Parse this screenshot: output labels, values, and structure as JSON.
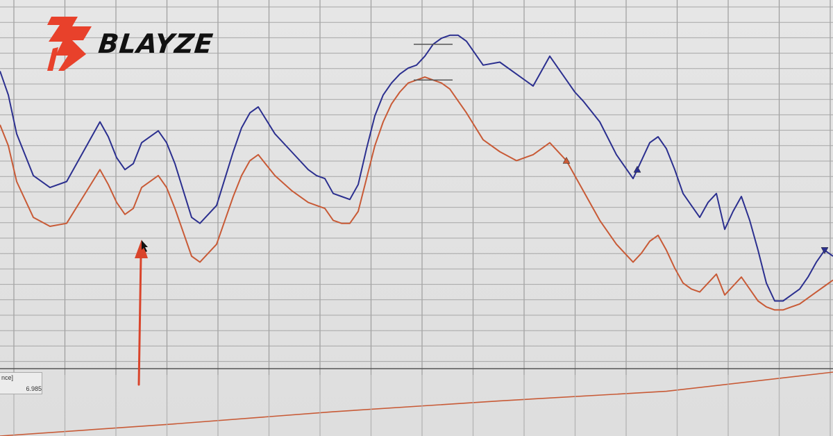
{
  "brand": {
    "name": "BLAYZE",
    "colors": {
      "mark": "#e8412b",
      "text": "#111111"
    }
  },
  "chart_data": {
    "type": "line",
    "title": "",
    "xlabel": "",
    "ylabel": "",
    "grid": true,
    "xlim": [
      0,
      100
    ],
    "ylim": [
      0,
      100
    ],
    "series": [
      {
        "color": "#2b2f8f",
        "x": [
          0,
          1,
          2,
          4,
          6,
          8,
          10,
          12,
          13,
          14,
          15,
          16,
          17,
          19,
          20,
          21,
          22,
          23,
          24,
          25,
          26,
          27,
          28,
          29,
          30,
          31,
          33,
          35,
          37,
          38,
          39,
          40,
          41,
          42,
          43,
          44,
          45,
          46,
          47,
          48,
          49,
          50,
          51,
          52,
          53,
          54,
          55,
          56,
          58,
          60,
          62,
          64,
          66,
          68,
          69,
          70,
          72,
          74,
          76,
          77,
          78,
          79,
          80,
          81,
          82,
          83,
          84,
          85,
          86,
          87,
          88,
          89,
          90,
          91,
          92,
          93,
          94,
          95,
          96,
          97,
          98,
          99,
          100
        ],
        "values": [
          82,
          74,
          61,
          47,
          43,
          45,
          55,
          65,
          60,
          53,
          49,
          51,
          58,
          62,
          58,
          51,
          42,
          33,
          31,
          34,
          37,
          46,
          55,
          63,
          68,
          70,
          61,
          55,
          49,
          47,
          46,
          41,
          40,
          39,
          44,
          56,
          67,
          74,
          78,
          81,
          83,
          84,
          87,
          91,
          93,
          94,
          94,
          92,
          84,
          85,
          81,
          77,
          87,
          79,
          75,
          72,
          65,
          54,
          46,
          52,
          58,
          60,
          56,
          49,
          41,
          37,
          33,
          38,
          41,
          29,
          35,
          40,
          32,
          22,
          11,
          5,
          5,
          7,
          9,
          13,
          18,
          22,
          20
        ]
      },
      {
        "color": "#c85a36",
        "x": [
          0,
          1,
          2,
          4,
          6,
          8,
          10,
          12,
          13,
          14,
          15,
          16,
          17,
          19,
          20,
          21,
          22,
          23,
          24,
          25,
          26,
          27,
          28,
          29,
          30,
          31,
          33,
          35,
          37,
          38,
          39,
          40,
          41,
          42,
          43,
          44,
          45,
          46,
          47,
          48,
          49,
          50,
          51,
          52,
          53,
          54,
          55,
          56,
          58,
          60,
          62,
          64,
          66,
          68,
          69,
          70,
          72,
          74,
          76,
          77,
          78,
          79,
          80,
          81,
          82,
          83,
          84,
          85,
          86,
          87,
          88,
          89,
          90,
          91,
          92,
          93,
          94,
          95,
          96,
          97,
          98,
          99,
          100
        ],
        "values": [
          64,
          57,
          45,
          33,
          30,
          31,
          40,
          49,
          44,
          38,
          34,
          36,
          43,
          47,
          43,
          36,
          28,
          20,
          18,
          21,
          24,
          32,
          40,
          47,
          52,
          54,
          47,
          42,
          38,
          37,
          36,
          32,
          31,
          31,
          35,
          46,
          57,
          65,
          71,
          75,
          78,
          79,
          80,
          79,
          78,
          76,
          72,
          68,
          59,
          55,
          52,
          54,
          58,
          52,
          47,
          42,
          32,
          24,
          18,
          21,
          25,
          27,
          22,
          16,
          11,
          9,
          8,
          11,
          14,
          7,
          10,
          13,
          9,
          5,
          3,
          2,
          2,
          3,
          4,
          6,
          8,
          10,
          12
        ]
      }
    ],
    "markers": [
      {
        "series": 0,
        "x": 76.5,
        "type": "triangle-up"
      },
      {
        "series": 1,
        "x": 68,
        "type": "triangle-up"
      },
      {
        "series": 0,
        "x": 99,
        "type": "triangle-down"
      }
    ],
    "annotations": [
      {
        "type": "arrow",
        "color": "#d9442b"
      },
      {
        "type": "reference-lines"
      }
    ],
    "lower_panel": {
      "label": "nce]",
      "value": "6.985",
      "series": {
        "color": "#c85a36",
        "x": [
          0,
          20,
          40,
          60,
          80,
          100
        ],
        "values": [
          0,
          18,
          38,
          55,
          70,
          100
        ]
      }
    }
  }
}
